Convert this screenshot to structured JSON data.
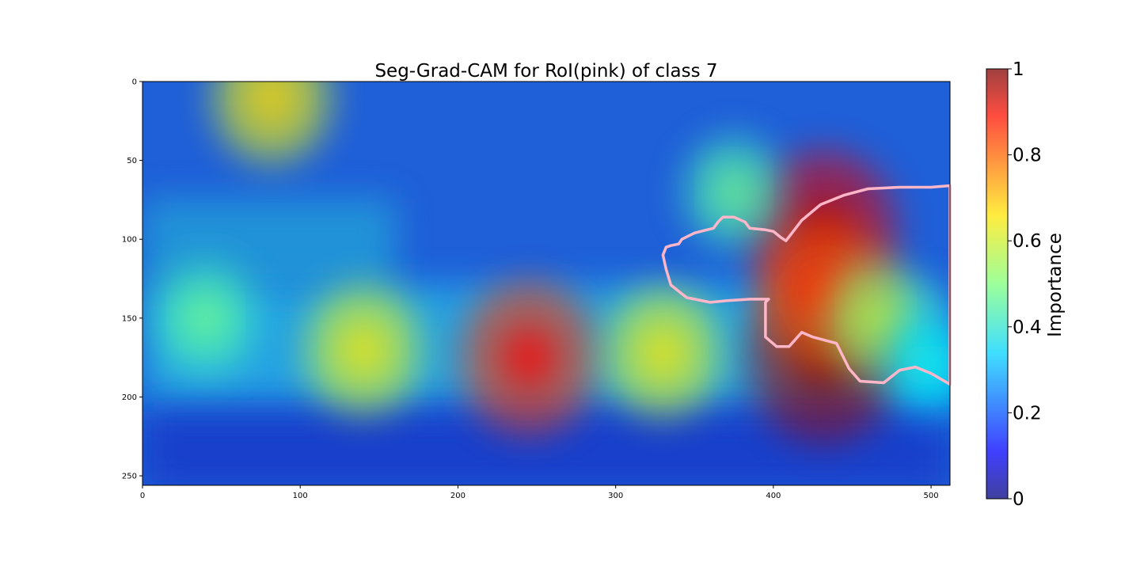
{
  "chart_data": {
    "type": "heatmap",
    "title": "Seg-Grad-CAM for RoI(pink) of class 7",
    "x_ticks": [
      0,
      100,
      200,
      300,
      400,
      500
    ],
    "y_ticks": [
      0,
      50,
      100,
      150,
      200,
      250
    ],
    "xlim": [
      0,
      512
    ],
    "ylim": [
      256,
      0
    ],
    "grid": false,
    "colormap": "jet",
    "colorbar": {
      "label": "Importance",
      "range": [
        0,
        1
      ],
      "ticks": [
        0,
        0.2,
        0.4,
        0.6,
        0.8,
        1
      ],
      "tick_labels": [
        "0",
        "0.2",
        "0.4",
        "0.6",
        "0.8",
        "1"
      ]
    },
    "hotspots": [
      {
        "x": 432,
        "y": 175,
        "value": 0.97
      },
      {
        "x": 432,
        "y": 95,
        "value": 0.9
      },
      {
        "x": 432,
        "y": 135,
        "value": 0.78
      },
      {
        "x": 245,
        "y": 175,
        "value": 0.82
      },
      {
        "x": 140,
        "y": 170,
        "value": 0.6
      },
      {
        "x": 330,
        "y": 172,
        "value": 0.6
      },
      {
        "x": 82,
        "y": 10,
        "value": 0.62
      },
      {
        "x": 40,
        "y": 150,
        "value": 0.45
      },
      {
        "x": 465,
        "y": 150,
        "value": 0.5
      },
      {
        "x": 375,
        "y": 70,
        "value": 0.45
      },
      {
        "x": 500,
        "y": 180,
        "value": 0.35
      }
    ],
    "roi_contour": [
      [
        408,
        101
      ],
      [
        418,
        88
      ],
      [
        430,
        78
      ],
      [
        445,
        72
      ],
      [
        460,
        68
      ],
      [
        480,
        67
      ],
      [
        500,
        67
      ],
      [
        512,
        66
      ],
      [
        512,
        192
      ],
      [
        500,
        185
      ],
      [
        490,
        181
      ],
      [
        480,
        183
      ],
      [
        470,
        191
      ],
      [
        455,
        190
      ],
      [
        448,
        182
      ],
      [
        440,
        166
      ],
      [
        425,
        162
      ],
      [
        418,
        159
      ],
      [
        410,
        168
      ],
      [
        402,
        168
      ],
      [
        395,
        162
      ],
      [
        395,
        140
      ],
      [
        397,
        138
      ],
      [
        385,
        138
      ],
      [
        370,
        139
      ],
      [
        360,
        140
      ],
      [
        345,
        137
      ],
      [
        335,
        129
      ],
      [
        332,
        119
      ],
      [
        330,
        110
      ],
      [
        332,
        105
      ],
      [
        335,
        104
      ],
      [
        340,
        103
      ],
      [
        342,
        100
      ],
      [
        350,
        96
      ],
      [
        362,
        93
      ],
      [
        365,
        89
      ],
      [
        368,
        86
      ],
      [
        375,
        86
      ],
      [
        382,
        89
      ],
      [
        385,
        93
      ],
      [
        395,
        94
      ],
      [
        400,
        95
      ],
      [
        405,
        99
      ]
    ]
  }
}
